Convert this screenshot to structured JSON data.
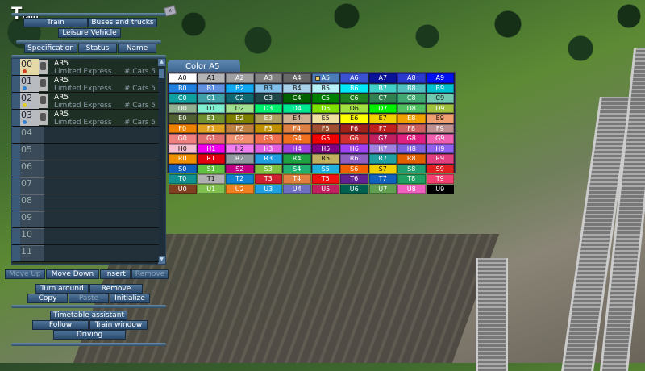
{
  "window": {
    "title_big": "T",
    "title_rest": "rain",
    "close_icon": "close-icon"
  },
  "categories": [
    "Train",
    "Buses and trucks",
    "Leisure Vehicle"
  ],
  "view_tabs": [
    "Specification",
    "Status",
    "Name"
  ],
  "trains": [
    {
      "num": "00",
      "name": "AR5",
      "type": "Limited Express",
      "cars": "# Cars 5",
      "dot": "#d04020",
      "selected": true
    },
    {
      "num": "01",
      "name": "AR5",
      "type": "Limited Express",
      "cars": "# Cars 5",
      "dot": "#3080d0"
    },
    {
      "num": "02",
      "name": "AR5",
      "type": "Limited Express",
      "cars": "# Cars 5",
      "dot": "#e0d020"
    },
    {
      "num": "03",
      "name": "AR5",
      "type": "Limited Express",
      "cars": "# Cars 5",
      "dot": "#3080d0"
    }
  ],
  "empty_slots": [
    "04",
    "05",
    "06",
    "07",
    "08",
    "09",
    "10",
    "11"
  ],
  "list_actions": [
    {
      "label": "Move Up",
      "enabled": false
    },
    {
      "label": "Move Down",
      "enabled": true
    },
    {
      "label": "Insert",
      "enabled": true
    },
    {
      "label": "Remove",
      "enabled": false
    }
  ],
  "train_actions": [
    {
      "label": "Turn around",
      "enabled": true
    },
    {
      "label": "Remove",
      "enabled": true
    },
    {
      "label": "Copy",
      "enabled": true
    },
    {
      "label": "Paste",
      "enabled": false
    },
    {
      "label": "Initialize",
      "enabled": true
    }
  ],
  "tools": [
    "Timetable assistant",
    "Follow",
    "Train window",
    "Driving"
  ],
  "palette": {
    "title": "Color A5",
    "selected": "A5",
    "rows": [
      {
        "p": "A",
        "c": [
          "#ffffff",
          "#b4b4b4",
          "#a0a0a0",
          "#808080",
          "#686868",
          "#4a7cb8",
          "#3a52d0",
          "#0a1498",
          "#2a3ad0",
          "#0010f0"
        ]
      },
      {
        "p": "B",
        "c": [
          "#2080e0",
          "#6090e0",
          "#10a8f0",
          "#80c0e8",
          "#a8d0e8",
          "#b8f0f8",
          "#00e8f8",
          "#40d0c8",
          "#50c0c0",
          "#00c0d0"
        ]
      },
      {
        "p": "C",
        "c": [
          "#10a0a0",
          "#40a0a8",
          "#106870",
          "#204848",
          "#006000",
          "#008000",
          "#208020",
          "#308050",
          "#40a870",
          "#70c8b0"
        ]
      },
      {
        "p": "D",
        "c": [
          "#90b090",
          "#80f0d0",
          "#a0e090",
          "#00f070",
          "#00e890",
          "#80e000",
          "#a0e040",
          "#00f000",
          "#50c060",
          "#a0c040"
        ]
      },
      {
        "p": "E",
        "c": [
          "#506030",
          "#709030",
          "#808000",
          "#b0a060",
          "#d0b090",
          "#f0e0a0",
          "#ffff00",
          "#f0d000",
          "#f0a000",
          "#f0a070"
        ]
      },
      {
        "p": "F",
        "c": [
          "#f08000",
          "#e0a020",
          "#c08040",
          "#c09000",
          "#e08040",
          "#a05030",
          "#a02020",
          "#c02020",
          "#d06060",
          "#c09090"
        ]
      },
      {
        "p": "G",
        "c": [
          "#f08080",
          "#e07070",
          "#f09070",
          "#f07050",
          "#f07020",
          "#f00000",
          "#d03030",
          "#c02060",
          "#e02080",
          "#f060b0"
        ]
      },
      {
        "p": "H",
        "c": [
          "#f8c0d0",
          "#f000f0",
          "#f080f0",
          "#e060e0",
          "#a040e0",
          "#800080",
          "#a040f0",
          "#a080e0",
          "#8060e0",
          "#9060f0"
        ]
      },
      {
        "p": "R",
        "c": [
          "#f09000",
          "#e00010",
          "#9098a0",
          "#20a0e0",
          "#20a040",
          "#c0b060",
          "#9060c0",
          "#20a0a0",
          "#e06000",
          "#e04080"
        ]
      },
      {
        "p": "S",
        "c": [
          "#1060c0",
          "#60c040",
          "#c00080",
          "#80c040",
          "#20b070",
          "#20b0e0",
          "#f06000",
          "#f0d000",
          "#20a070",
          "#e02020"
        ]
      },
      {
        "p": "T",
        "c": [
          "#109090",
          "#b0b0b0",
          "#1080d0",
          "#d02030",
          "#e08040",
          "#f01010",
          "#602090",
          "#1060c0",
          "#20a060",
          "#f04070"
        ]
      },
      {
        "p": "U",
        "c": [
          "#804020",
          "#80c050",
          "#f08020",
          "#20a0e0",
          "#7070c0",
          "#c02060",
          "#006050",
          "#60a050",
          "#f060c0",
          "#000000"
        ]
      }
    ]
  }
}
